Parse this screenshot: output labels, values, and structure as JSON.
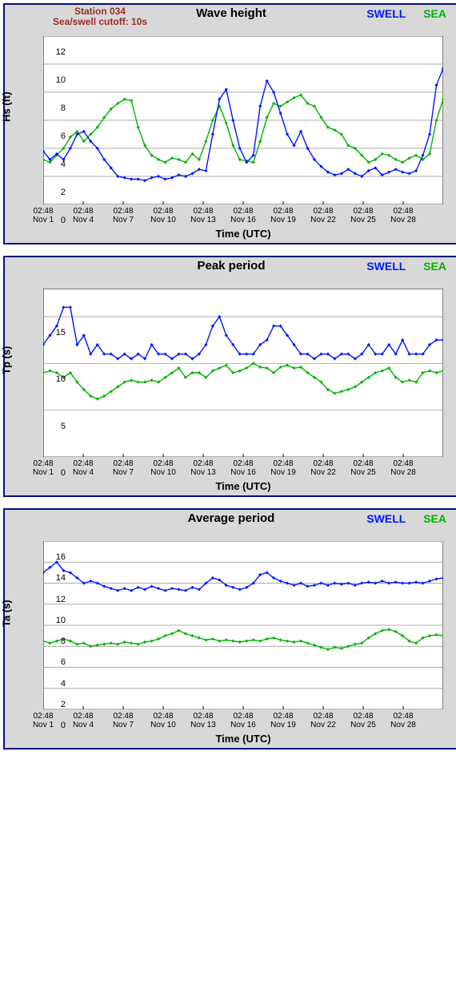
{
  "station": {
    "name": "Station 034",
    "cutoff": "Sea/swell cutoff: 10s"
  },
  "legend": {
    "swell": "SWELL",
    "sea": "SEA"
  },
  "xlabel": "Time (UTC)",
  "colors": {
    "swell": "#0018ff",
    "sea": "#00b400",
    "panel_border": "#001080",
    "panel_bg": "#d8d8d8",
    "plot_bg": "#ffffff",
    "grid": "#909090",
    "station_text": "#9b2c26"
  },
  "x": {
    "min": 0,
    "max": 30,
    "ticks": [
      {
        "v": 0,
        "t": "02:48",
        "d": "Nov 1"
      },
      {
        "v": 3,
        "t": "02:48",
        "d": "Nov 4"
      },
      {
        "v": 6,
        "t": "02:48",
        "d": "Nov 7"
      },
      {
        "v": 9,
        "t": "02:48",
        "d": "Nov 10"
      },
      {
        "v": 12,
        "t": "02:48",
        "d": "Nov 13"
      },
      {
        "v": 15,
        "t": "02:48",
        "d": "Nov 16"
      },
      {
        "v": 18,
        "t": "02:48",
        "d": "Nov 19"
      },
      {
        "v": 21,
        "t": "02:48",
        "d": "Nov 22"
      },
      {
        "v": 24,
        "t": "02:48",
        "d": "Nov 25"
      },
      {
        "v": 27,
        "t": "02:48",
        "d": "Nov 28"
      }
    ]
  },
  "charts": [
    {
      "id": "wave-height",
      "title": "Wave height",
      "ylabel": "Hs (ft)",
      "ylim": [
        0,
        12
      ],
      "ytick_step": 2,
      "show_station": true,
      "swell": [
        3.8,
        3.2,
        3.6,
        3.2,
        4.0,
        5.0,
        5.2,
        4.5,
        4.0,
        3.2,
        2.6,
        2.0,
        1.9,
        1.8,
        1.8,
        1.7,
        1.9,
        2.0,
        1.8,
        1.9,
        2.1,
        2.0,
        2.2,
        2.5,
        2.4,
        5.0,
        7.5,
        8.2,
        6.0,
        4.0,
        3.0,
        3.5,
        7.0,
        8.8,
        8.0,
        6.5,
        5.0,
        4.2,
        5.2,
        4.0,
        3.2,
        2.7,
        2.3,
        2.1,
        2.2,
        2.5,
        2.2,
        2.0,
        2.4,
        2.6,
        2.1,
        2.3,
        2.5,
        2.3,
        2.2,
        2.4,
        3.5,
        5.0,
        8.5,
        9.7
      ],
      "sea": [
        3.2,
        3.0,
        3.5,
        4.0,
        4.8,
        5.2,
        4.5,
        5.0,
        5.5,
        6.2,
        6.8,
        7.2,
        7.5,
        7.4,
        5.5,
        4.2,
        3.5,
        3.2,
        3.0,
        3.3,
        3.2,
        3.0,
        3.6,
        3.2,
        4.5,
        6.0,
        7.0,
        5.8,
        4.2,
        3.2,
        3.1,
        3.0,
        4.5,
        6.2,
        7.2,
        7.0,
        7.3,
        7.6,
        7.8,
        7.2,
        7.0,
        6.2,
        5.5,
        5.3,
        5.0,
        4.2,
        4.0,
        3.5,
        3.0,
        3.2,
        3.6,
        3.5,
        3.2,
        3.0,
        3.3,
        3.5,
        3.2,
        3.6,
        6.0,
        7.5
      ]
    },
    {
      "id": "peak-period",
      "title": "Peak period",
      "ylabel": "Tp (s)",
      "ylim": [
        0,
        18
      ],
      "ytick_step": 5,
      "yticks": [
        0,
        5,
        10,
        15
      ],
      "show_station": false,
      "swell": [
        12,
        13,
        14,
        16,
        16,
        12,
        13,
        11,
        12,
        11,
        11,
        10.5,
        11,
        10.5,
        11,
        10.5,
        12,
        11,
        11,
        10.5,
        11,
        11,
        10.5,
        11,
        12,
        14,
        15,
        13,
        12,
        11,
        11,
        11,
        12,
        12.5,
        14,
        14,
        13,
        12,
        11,
        11,
        10.5,
        11,
        11,
        10.5,
        11,
        11,
        10.5,
        11,
        12,
        11,
        11,
        12,
        11,
        12.5,
        11,
        11,
        11,
        12,
        12.5,
        12.5
      ],
      "sea": [
        9,
        9.2,
        9,
        8.5,
        9,
        8,
        7.2,
        6.5,
        6.2,
        6.5,
        7,
        7.5,
        8,
        8.2,
        8,
        8,
        8.2,
        8,
        8.5,
        9,
        9.5,
        8.5,
        9,
        9,
        8.5,
        9.2,
        9.5,
        9.8,
        9,
        9.2,
        9.5,
        10,
        9.6,
        9.5,
        9,
        9.6,
        9.8,
        9.5,
        9.6,
        9,
        8.5,
        8,
        7.2,
        6.8,
        7,
        7.2,
        7.5,
        8,
        8.5,
        9,
        9.2,
        9.5,
        8.5,
        8,
        8.2,
        8,
        9,
        9.2,
        9,
        9.2
      ]
    },
    {
      "id": "average-period",
      "title": "Average period",
      "ylabel": "Ta (s)",
      "ylim": [
        0,
        16
      ],
      "ytick_step": 2,
      "show_station": false,
      "swell": [
        13,
        13.5,
        14,
        13.2,
        13,
        12.5,
        12,
        12.2,
        12,
        11.7,
        11.5,
        11.3,
        11.5,
        11.3,
        11.6,
        11.4,
        11.7,
        11.5,
        11.3,
        11.5,
        11.4,
        11.3,
        11.6,
        11.4,
        12,
        12.5,
        12.3,
        11.8,
        11.6,
        11.4,
        11.6,
        12,
        12.8,
        13,
        12.5,
        12.2,
        12,
        11.8,
        12,
        11.7,
        11.8,
        12,
        11.8,
        12,
        11.9,
        12,
        11.8,
        12,
        12.1,
        12,
        12.2,
        12,
        12.1,
        12,
        12,
        12.1,
        12,
        12.2,
        12.4,
        12.5
      ],
      "sea": [
        6.5,
        6.3,
        6.5,
        6.7,
        6.5,
        6.2,
        6.3,
        6.0,
        6.1,
        6.2,
        6.3,
        6.2,
        6.4,
        6.3,
        6.2,
        6.4,
        6.5,
        6.7,
        7.0,
        7.2,
        7.5,
        7.2,
        7.0,
        6.8,
        6.6,
        6.7,
        6.5,
        6.6,
        6.5,
        6.4,
        6.5,
        6.6,
        6.5,
        6.7,
        6.8,
        6.6,
        6.5,
        6.4,
        6.5,
        6.3,
        6.1,
        5.9,
        5.7,
        5.9,
        5.8,
        6.0,
        6.2,
        6.3,
        6.8,
        7.2,
        7.5,
        7.6,
        7.4,
        7.0,
        6.5,
        6.3,
        6.8,
        7.0,
        7.1,
        7.0
      ]
    }
  ]
}
